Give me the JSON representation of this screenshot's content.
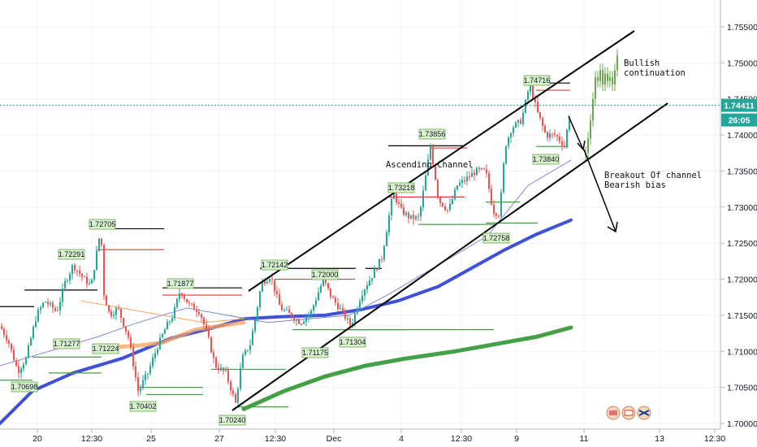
{
  "chart_data": {
    "type": "candlestick",
    "symbol_price_label": "1.74411",
    "countdown_label": "26:05",
    "y_ticks": [
      "1.75500",
      "1.75000",
      "1.74500",
      "1.74000",
      "1.73500",
      "1.73000",
      "1.72500",
      "1.72000",
      "1.71500",
      "1.71000",
      "1.70500",
      "1.70000"
    ],
    "y_tick_values": [
      1.755,
      1.75,
      1.745,
      1.74,
      1.735,
      1.73,
      1.725,
      1.72,
      1.715,
      1.71,
      1.705,
      1.7
    ],
    "x_ticks": [
      "20",
      "12:30",
      "25",
      "27",
      "12:30",
      "Dec",
      "4",
      "12:30",
      "9",
      "11",
      "13",
      "12:30"
    ],
    "current_price": 1.74411,
    "price_labels": [
      {
        "text": "1.72705",
        "value": 1.72705
      },
      {
        "text": "1.72291",
        "value": 1.72291
      },
      {
        "text": "1.71877",
        "value": 1.71877
      },
      {
        "text": "1.72142",
        "value": 1.72142
      },
      {
        "text": "1.72000",
        "value": 1.72
      },
      {
        "text": "1.73218",
        "value": 1.73218
      },
      {
        "text": "1.73856",
        "value": 1.73856
      },
      {
        "text": "1.74716",
        "value": 1.74716
      },
      {
        "text": "1.71277",
        "value": 1.71277
      },
      {
        "text": "1.71224",
        "value": 1.71224
      },
      {
        "text": "1.70698",
        "value": 1.70698
      },
      {
        "text": "1.70402",
        "value": 1.70402
      },
      {
        "text": "1.70240",
        "value": 1.7024
      },
      {
        "text": "1.71175",
        "value": 1.71175
      },
      {
        "text": "1.71304",
        "value": 1.71304
      },
      {
        "text": "1.72758",
        "value": 1.72758
      },
      {
        "text": "1.73840",
        "value": 1.7384
      }
    ],
    "annotations": {
      "channel": "Ascending Channel",
      "bullish": [
        "Bullish",
        "continuation"
      ],
      "bearish": [
        "Breakout Of channel",
        "Bearish bias"
      ]
    },
    "colors": {
      "up": "#26a69a",
      "down": "#ef5350",
      "ma_fast": "#3f51d9",
      "ma_slow": "#43a047",
      "ma_orange": "#f4a460",
      "price_line": "#26a69a",
      "channel": "#000000"
    }
  }
}
